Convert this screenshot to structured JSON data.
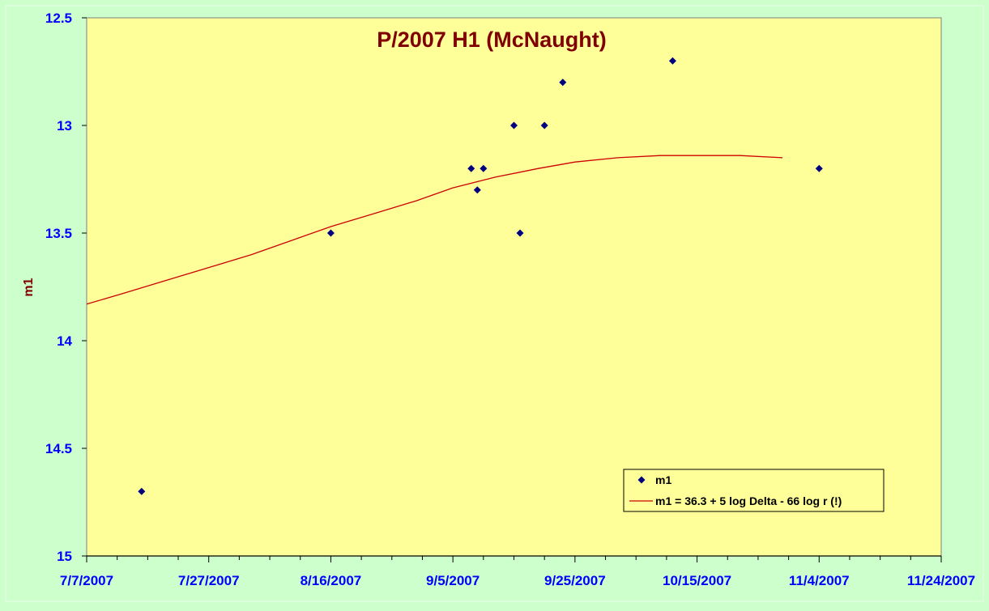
{
  "chart_data": {
    "type": "scatter",
    "title": "P/2007 H1 (McNaught)",
    "xlabel": "",
    "ylabel": "m1",
    "x_tick_labels": [
      "7/7/2007",
      "7/27/2007",
      "8/16/2007",
      "9/5/2007",
      "9/25/2007",
      "10/15/2007",
      "11/4/2007",
      "11/24/2007"
    ],
    "xlim": [
      "2007-07-07",
      "2007-11-24"
    ],
    "ylim": [
      12.5,
      15
    ],
    "y_reversed": true,
    "y_ticks": [
      12.5,
      13,
      13.5,
      14,
      14.5,
      15
    ],
    "y_tick_labels": [
      "12.5",
      "13",
      "13.5",
      "14",
      "14.5",
      "15"
    ],
    "grid": false,
    "legend_position": "bottom-right",
    "series": [
      {
        "name": "m1",
        "kind": "scatter",
        "marker": "diamond",
        "color": "#000080",
        "points": [
          {
            "x": "2007-07-16",
            "y": 14.7
          },
          {
            "x": "2007-08-16",
            "y": 13.5
          },
          {
            "x": "2007-09-08",
            "y": 13.2
          },
          {
            "x": "2007-09-09",
            "y": 13.3
          },
          {
            "x": "2007-09-10",
            "y": 13.2
          },
          {
            "x": "2007-09-15",
            "y": 13.0
          },
          {
            "x": "2007-09-16",
            "y": 13.5
          },
          {
            "x": "2007-09-20",
            "y": 13.0
          },
          {
            "x": "2007-09-23",
            "y": 12.8
          },
          {
            "x": "2007-10-11",
            "y": 12.7
          },
          {
            "x": "2007-11-04",
            "y": 13.2
          }
        ]
      },
      {
        "name": "m1 = 36.3 + 5 log Delta - 66 log r (!)",
        "kind": "line",
        "color": "#cc0000",
        "points": [
          {
            "x": "2007-07-07",
            "y": 13.83
          },
          {
            "x": "2007-07-13",
            "y": 13.78
          },
          {
            "x": "2007-07-20",
            "y": 13.72
          },
          {
            "x": "2007-07-27",
            "y": 13.66
          },
          {
            "x": "2007-08-03",
            "y": 13.6
          },
          {
            "x": "2007-08-10",
            "y": 13.53
          },
          {
            "x": "2007-08-16",
            "y": 13.47
          },
          {
            "x": "2007-08-23",
            "y": 13.41
          },
          {
            "x": "2007-08-30",
            "y": 13.35
          },
          {
            "x": "2007-09-05",
            "y": 13.29
          },
          {
            "x": "2007-09-12",
            "y": 13.24
          },
          {
            "x": "2007-09-19",
            "y": 13.2
          },
          {
            "x": "2007-09-25",
            "y": 13.17
          },
          {
            "x": "2007-10-02",
            "y": 13.15
          },
          {
            "x": "2007-10-09",
            "y": 13.14
          },
          {
            "x": "2007-10-15",
            "y": 13.14
          },
          {
            "x": "2007-10-22",
            "y": 13.14
          },
          {
            "x": "2007-10-29",
            "y": 13.15
          }
        ]
      }
    ],
    "colors": {
      "figure_background": "#ccffcc",
      "plot_background": "#ffff99",
      "title": "#800000",
      "ylabel": "#800000",
      "tick_labels": "#0000ff"
    }
  }
}
